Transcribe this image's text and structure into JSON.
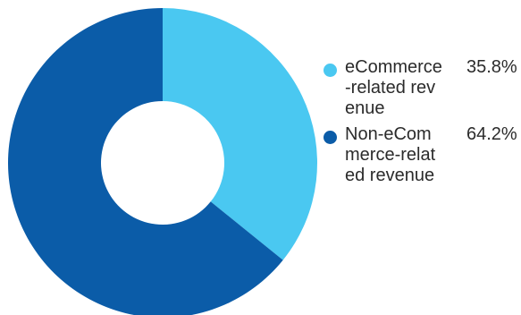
{
  "chart_data": {
    "type": "pie",
    "subtype": "donut",
    "categories": [
      "eCommerce-related revenue",
      "Non-eCommerce-related revenue"
    ],
    "values": [
      35.8,
      64.2
    ],
    "value_labels": [
      "35.8%",
      "64.2%"
    ],
    "colors": [
      "#4ac8f1",
      "#0b5ca8"
    ],
    "legend_position": "right"
  },
  "legend": {
    "items": [
      {
        "label": "eCommerce-related revenue",
        "value": "35.8%",
        "color": "#4ac8f1"
      },
      {
        "label": "Non-eCommerce-related revenue",
        "value": "64.2%",
        "color": "#0b5ca8"
      }
    ]
  }
}
